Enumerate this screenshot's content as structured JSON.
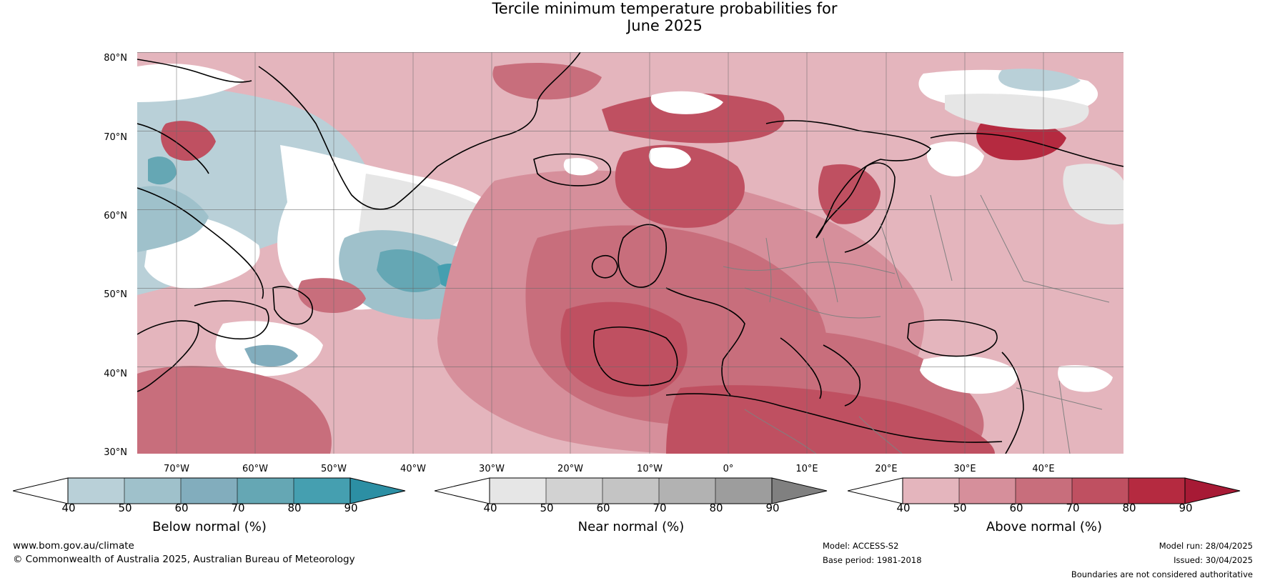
{
  "title": {
    "line1": "Tercile minimum temperature probabilities for",
    "line2": "June 2025"
  },
  "map": {
    "region": "North Atlantic and Europe",
    "lat_labels": [
      "80°N",
      "70°N",
      "60°N",
      "50°N",
      "40°N",
      "30°N"
    ],
    "lon_labels": [
      "70°W",
      "60°W",
      "50°W",
      "40°W",
      "30°W",
      "20°W",
      "10°W",
      "0°",
      "10°E",
      "20°E",
      "30°E",
      "40°E"
    ],
    "colors": {
      "above_normal": [
        "#e4b5bd",
        "#d68f9b",
        "#c86e7c",
        "#bf5061",
        "#b52a40",
        "#a71a35"
      ],
      "below_normal": [
        "#b9d0d8",
        "#9fc1cb",
        "#82adbd",
        "#65a7b4",
        "#459fb0",
        "#2c8fa4"
      ],
      "near_normal": [
        "#e6e6e6",
        "#d2d2d2",
        "#c4c4c4",
        "#b2b2b2",
        "#9d9d9d",
        "#808080"
      ],
      "coastline": "#000000",
      "borders": "#808080"
    }
  },
  "colorbars": [
    {
      "label": "Below normal (%)",
      "ticks": [
        "40",
        "50",
        "60",
        "70",
        "80",
        "90"
      ],
      "palette": "below_normal"
    },
    {
      "label": "Near normal (%)",
      "ticks": [
        "40",
        "50",
        "60",
        "70",
        "80",
        "90"
      ],
      "palette": "near_normal"
    },
    {
      "label": "Above normal (%)",
      "ticks": [
        "40",
        "50",
        "60",
        "70",
        "80",
        "90"
      ],
      "palette": "above_normal"
    }
  ],
  "footer": {
    "website": "www.bom.gov.au/climate",
    "copyright": "© Commonwealth of Australia 2025, Australian Bureau of Meteorology",
    "model": "Model: ACCESS-S2",
    "base_period": "Base period: 1981-2018",
    "model_run": "Model run: 28/04/2025",
    "issued": "Issued: 30/04/2025",
    "disclaimer": "Boundaries are not considered authoritative"
  }
}
